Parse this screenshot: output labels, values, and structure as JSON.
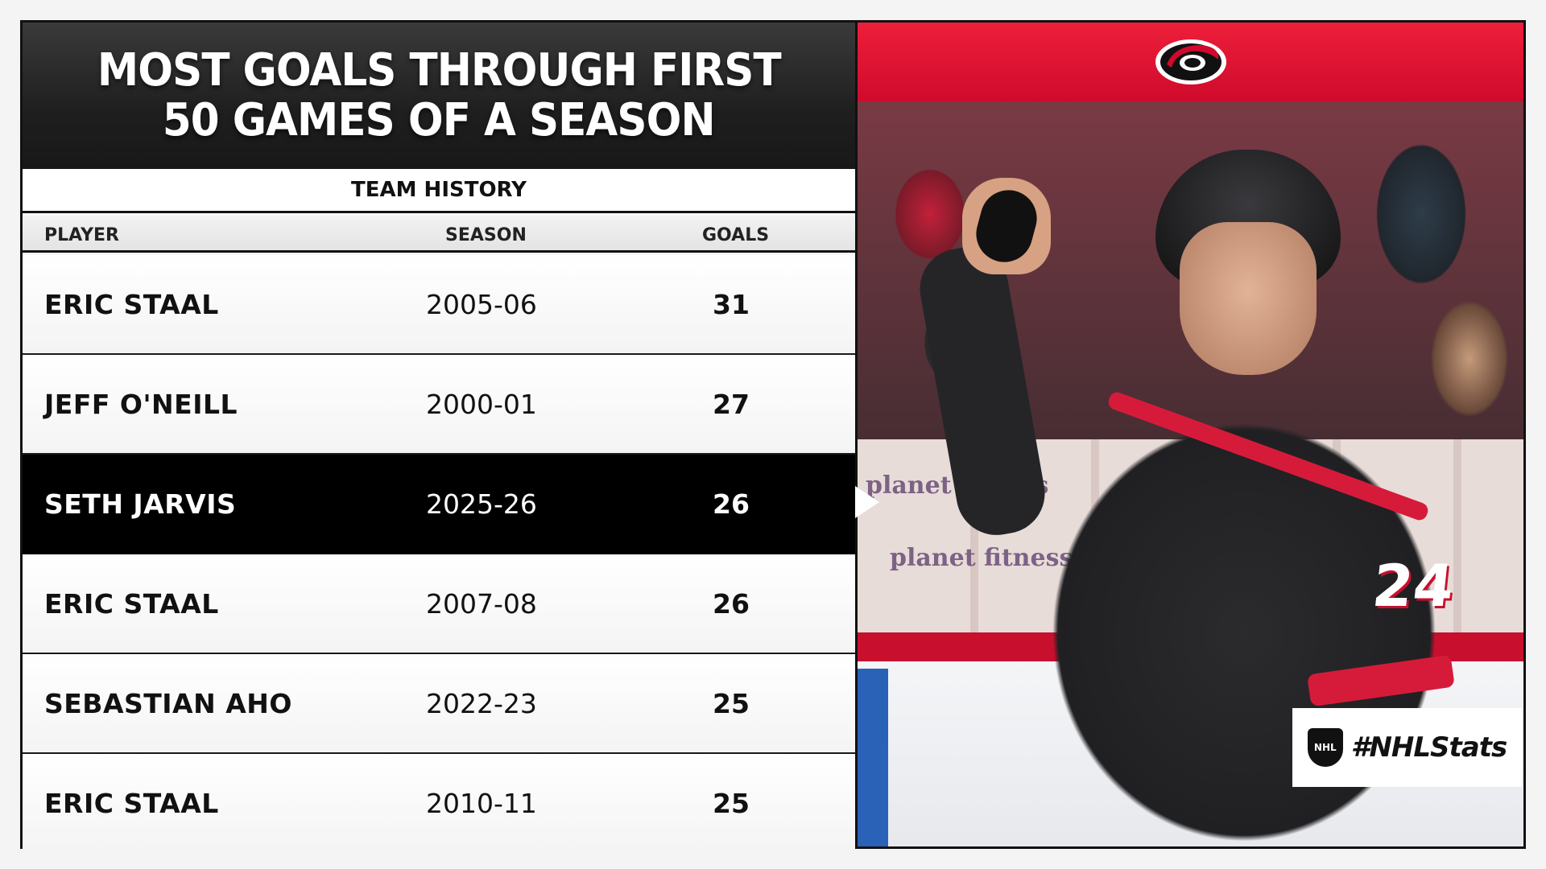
{
  "header": {
    "title_line1": "MOST GOALS THROUGH FIRST",
    "title_line2": "50 GAMES OF A SEASON"
  },
  "subheader": "TEAM HISTORY",
  "columns": {
    "player": "PLAYER",
    "season": "SEASON",
    "goals": "GOALS"
  },
  "rows": [
    {
      "player": "ERIC STAAL",
      "season": "2005-06",
      "goals": "31",
      "highlight": false
    },
    {
      "player": "JEFF O'NEILL",
      "season": "2000-01",
      "goals": "27",
      "highlight": false
    },
    {
      "player": "SETH JARVIS",
      "season": "2025-26",
      "goals": "26",
      "highlight": true
    },
    {
      "player": "ERIC STAAL",
      "season": "2007-08",
      "goals": "26",
      "highlight": false
    },
    {
      "player": "SEBASTIAN AHO",
      "season": "2022-23",
      "goals": "25",
      "highlight": false
    },
    {
      "player": "ERIC STAAL",
      "season": "2010-11",
      "goals": "25",
      "highlight": false
    }
  ],
  "photo": {
    "jersey_number": "24",
    "ad_text": "planet fitness"
  },
  "branding": {
    "team_logo": "hurricanes-logo",
    "league_logo": "nhl-shield-icon",
    "hashtag": "#NHLStats"
  },
  "colors": {
    "accent_red": "#cf0a2c",
    "dark": "#111111",
    "highlight_row": "#000000"
  }
}
